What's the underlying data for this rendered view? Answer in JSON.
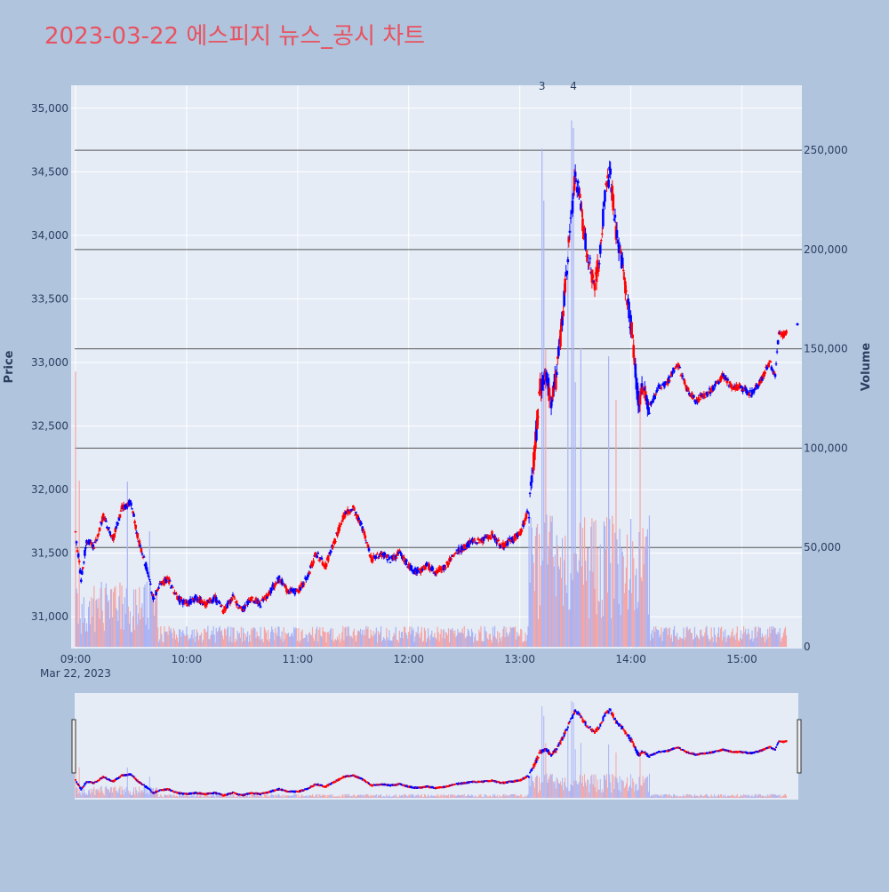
{
  "chart_data": {
    "type": "candlestick",
    "title": "2023-03-22 에스피지 뉴스_공시 차트",
    "colors": {
      "background": "#b0c4de",
      "plot_bg": "#e5ecf6",
      "title": "#e8525f",
      "up": "#ff0000",
      "down": "#0000ff",
      "volume_up": "#f4a6a6",
      "volume_down": "#a9b3f4",
      "grid": "#ffffff",
      "hline": "#555555"
    },
    "y_price": {
      "label": "Price",
      "range": [
        30750,
        35180
      ],
      "ticks": [
        31000,
        31500,
        32000,
        32500,
        33000,
        33500,
        34000,
        34500,
        35000
      ]
    },
    "y_volume": {
      "label": "Volume",
      "range": [
        0,
        280000
      ],
      "ticks": [
        0,
        50000,
        100000,
        150000,
        200000,
        250000
      ]
    },
    "x_axis": {
      "start": "09:00",
      "end": "15:30",
      "ticks": [
        "09:00",
        "10:00",
        "11:00",
        "12:00",
        "13:00",
        "14:00",
        "15:00"
      ],
      "date_label": "Mar 22, 2023"
    },
    "volume_levels": [
      50000,
      100000,
      150000,
      200000,
      250000
    ],
    "annotations": [
      {
        "text": "3",
        "time": "13:12"
      },
      {
        "text": "4",
        "time": "13:29"
      }
    ],
    "trend_points": [
      [
        "09:00",
        31650
      ],
      [
        "09:03",
        31300
      ],
      [
        "09:06",
        31600
      ],
      [
        "09:10",
        31550
      ],
      [
        "09:15",
        31800
      ],
      [
        "09:20",
        31600
      ],
      [
        "09:25",
        31850
      ],
      [
        "09:30",
        31900
      ],
      [
        "09:34",
        31600
      ],
      [
        "09:38",
        31400
      ],
      [
        "09:42",
        31150
      ],
      [
        "09:46",
        31250
      ],
      [
        "09:50",
        31300
      ],
      [
        "09:55",
        31150
      ],
      [
        "10:00",
        31100
      ],
      [
        "10:05",
        31150
      ],
      [
        "10:10",
        31100
      ],
      [
        "10:15",
        31150
      ],
      [
        "10:20",
        31050
      ],
      [
        "10:25",
        31150
      ],
      [
        "10:30",
        31050
      ],
      [
        "10:35",
        31150
      ],
      [
        "10:40",
        31100
      ],
      [
        "10:45",
        31200
      ],
      [
        "10:50",
        31300
      ],
      [
        "10:55",
        31200
      ],
      [
        "11:00",
        31200
      ],
      [
        "11:05",
        31300
      ],
      [
        "11:10",
        31500
      ],
      [
        "11:15",
        31400
      ],
      [
        "11:20",
        31600
      ],
      [
        "11:25",
        31800
      ],
      [
        "11:30",
        31850
      ],
      [
        "11:35",
        31700
      ],
      [
        "11:40",
        31450
      ],
      [
        "11:45",
        31500
      ],
      [
        "11:50",
        31450
      ],
      [
        "11:55",
        31500
      ],
      [
        "12:00",
        31400
      ],
      [
        "12:05",
        31350
      ],
      [
        "12:10",
        31400
      ],
      [
        "12:15",
        31350
      ],
      [
        "12:20",
        31400
      ],
      [
        "12:25",
        31500
      ],
      [
        "12:30",
        31550
      ],
      [
        "12:35",
        31600
      ],
      [
        "12:40",
        31600
      ],
      [
        "12:45",
        31650
      ],
      [
        "12:50",
        31550
      ],
      [
        "12:55",
        31600
      ],
      [
        "13:00",
        31650
      ],
      [
        "13:05",
        31850
      ],
      [
        "13:08",
        32300
      ],
      [
        "13:11",
        32800
      ],
      [
        "13:14",
        32900
      ],
      [
        "13:17",
        32700
      ],
      [
        "13:20",
        32900
      ],
      [
        "13:24",
        33500
      ],
      [
        "13:27",
        34000
      ],
      [
        "13:30",
        34500
      ],
      [
        "13:33",
        34200
      ],
      [
        "13:36",
        33900
      ],
      [
        "13:40",
        33600
      ],
      [
        "13:43",
        33800
      ],
      [
        "13:46",
        34300
      ],
      [
        "13:49",
        34500
      ],
      [
        "13:52",
        34000
      ],
      [
        "13:55",
        33800
      ],
      [
        "13:58",
        33500
      ],
      [
        "14:01",
        33200
      ],
      [
        "14:04",
        32700
      ],
      [
        "14:07",
        32800
      ],
      [
        "14:10",
        32650
      ],
      [
        "14:15",
        32800
      ],
      [
        "14:20",
        32850
      ],
      [
        "14:25",
        33000
      ],
      [
        "14:30",
        32800
      ],
      [
        "14:35",
        32700
      ],
      [
        "14:40",
        32750
      ],
      [
        "14:45",
        32800
      ],
      [
        "14:50",
        32900
      ],
      [
        "14:55",
        32800
      ],
      [
        "15:00",
        32800
      ],
      [
        "15:05",
        32750
      ],
      [
        "15:10",
        32850
      ],
      [
        "15:15",
        33000
      ],
      [
        "15:18",
        32900
      ],
      [
        "15:20",
        33250
      ],
      [
        "15:22",
        33200
      ],
      [
        "15:24",
        33250
      ]
    ],
    "volume_peaks": [
      [
        "09:00",
        150000
      ],
      [
        "09:02",
        95000
      ],
      [
        "09:28",
        88000
      ],
      [
        "09:40",
        65000
      ],
      [
        "13:12",
        270000
      ],
      [
        "13:13",
        235000
      ],
      [
        "13:14",
        170000
      ],
      [
        "13:26",
        240000
      ],
      [
        "13:28",
        268000
      ],
      [
        "13:29",
        275000
      ],
      [
        "13:30",
        155000
      ],
      [
        "13:33",
        170000
      ],
      [
        "13:48",
        160000
      ],
      [
        "13:52",
        140000
      ],
      [
        "14:05",
        140000
      ],
      [
        "15:30",
        85000
      ]
    ],
    "last_price": 33300
  }
}
